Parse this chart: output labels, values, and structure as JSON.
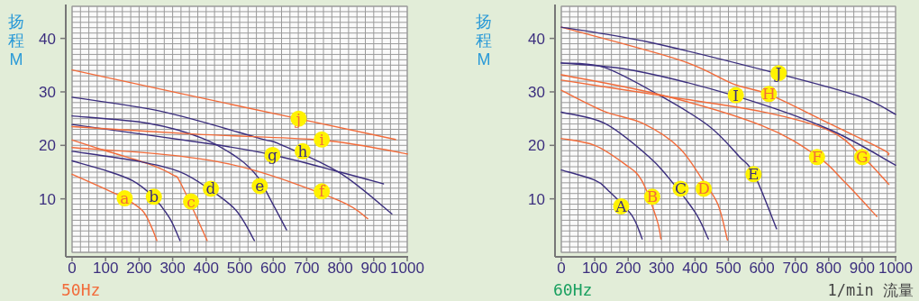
{
  "chart_data": [
    {
      "type": "line",
      "title": "50Hz",
      "ylabel": "扬程M",
      "xlim": [
        0,
        1000
      ],
      "ylim": [
        0,
        46
      ],
      "grid": true,
      "marker": "none",
      "line_style": "solid",
      "xticks": [
        0,
        100,
        200,
        300,
        400,
        500,
        600,
        700,
        800,
        900,
        1000
      ],
      "yticks": [
        10,
        20,
        30,
        40
      ],
      "series": [
        {
          "color": "#f26b3a",
          "x": [
            0,
            100,
            160,
            210,
            235,
            253
          ],
          "values": [
            14.6,
            11.8,
            10,
            7.8,
            5,
            2.2
          ]
        },
        {
          "color": "#3b2e7e",
          "x": [
            0,
            100,
            180,
            240,
            290,
            322
          ],
          "values": [
            17.1,
            15.3,
            13.4,
            10.5,
            6.5,
            2.2
          ]
        },
        {
          "color": "#f26b3a",
          "x": [
            0,
            100,
            230,
            300,
            325,
            403
          ],
          "values": [
            21,
            19,
            16.5,
            14.5,
            12.8,
            2.2
          ]
        },
        {
          "color": "#3b2e7e",
          "x": [
            0,
            200,
            320,
            410,
            490,
            544
          ],
          "values": [
            18.9,
            17,
            15.1,
            11.8,
            7.8,
            2.2
          ]
        },
        {
          "color": "#3b2e7e",
          "x": [
            0,
            230,
            390,
            500,
            555,
            590,
            640
          ],
          "values": [
            25.5,
            24.1,
            21.3,
            17.4,
            14,
            10.1,
            4.2
          ]
        },
        {
          "color": "#f26b3a",
          "x": [
            0,
            320,
            540,
            800,
            882
          ],
          "values": [
            19.6,
            18,
            15.4,
            9.6,
            6.3
          ]
        },
        {
          "color": "#3b2e7e",
          "x": [
            0,
            410,
            600,
            800,
            929
          ],
          "values": [
            23.9,
            20.3,
            18.2,
            15,
            12.8
          ]
        },
        {
          "color": "#3b2e7e",
          "x": [
            0,
            270,
            560,
            620,
            800,
            954
          ],
          "values": [
            29,
            26.3,
            21.3,
            20.2,
            14.8,
            7.2
          ]
        },
        {
          "color": "#f26b3a",
          "x": [
            0,
            370,
            720,
            860,
            1000
          ],
          "values": [
            23.5,
            22.1,
            21.1,
            20,
            18.4
          ]
        },
        {
          "color": "#f26b3a",
          "x": [
            0,
            480,
            965
          ],
          "values": [
            34.1,
            27.6,
            21.1
          ]
        }
      ],
      "annotations": [
        {
          "text": "a",
          "x": 157,
          "y": 10.1
        },
        {
          "text": "b",
          "x": 244,
          "y": 10.4
        },
        {
          "text": "c",
          "x": 355,
          "y": 9.5
        },
        {
          "text": "d",
          "x": 414,
          "y": 11.9
        },
        {
          "text": "e",
          "x": 560,
          "y": 12.4
        },
        {
          "text": "f",
          "x": 745,
          "y": 11.4
        },
        {
          "text": "g",
          "x": 598,
          "y": 18.2
        },
        {
          "text": "h",
          "x": 688,
          "y": 18.9
        },
        {
          "text": "i",
          "x": 745,
          "y": 21.1
        },
        {
          "text": "j",
          "x": 676,
          "y": 25
        }
      ]
    },
    {
      "type": "line",
      "title": "60Hz",
      "ylabel": "扬程M",
      "xlabel": "1/min 流量",
      "xlim": [
        0,
        1000
      ],
      "ylim": [
        0,
        46
      ],
      "grid": true,
      "marker": "none",
      "line_style": "solid",
      "xticks": [
        0,
        100,
        200,
        300,
        400,
        500,
        600,
        700,
        800,
        900,
        1000
      ],
      "yticks": [
        10,
        20,
        30,
        40
      ],
      "series": [
        {
          "color": "#3b2e7e",
          "x": [
            0,
            100,
            140,
            210,
            242
          ],
          "values": [
            15.4,
            13.5,
            11.6,
            7,
            2.5
          ]
        },
        {
          "color": "#f26b3a",
          "x": [
            0,
            100,
            190,
            240,
            285,
            298
          ],
          "values": [
            21.3,
            20,
            16.5,
            13.5,
            6.3,
            2.5
          ]
        },
        {
          "color": "#3b2e7e",
          "x": [
            0,
            130,
            260,
            320,
            400,
            440
          ],
          "values": [
            26.2,
            24.1,
            18,
            14,
            7.5,
            2.5
          ]
        },
        {
          "color": "#f26b3a",
          "x": [
            0,
            127,
            244,
            352,
            424,
            469,
            497
          ],
          "values": [
            30.3,
            26.4,
            24.1,
            19.6,
            13.4,
            8.9,
            2.3
          ]
        },
        {
          "color": "#3b2e7e",
          "x": [
            0,
            127,
            298,
            442,
            531,
            577,
            644
          ],
          "values": [
            35.4,
            34.6,
            29.2,
            23.6,
            18,
            14.6,
            4.4
          ]
        },
        {
          "color": "#f26b3a",
          "x": [
            0,
            300,
            600,
            765,
            850,
            944
          ],
          "values": [
            33.2,
            29.4,
            23.7,
            18,
            13,
            6.7
          ]
        },
        {
          "color": "#f26b3a",
          "x": [
            0,
            300,
            600,
            800,
            900,
            980
          ],
          "values": [
            32.2,
            29.3,
            26.3,
            22.8,
            18,
            12.7
          ]
        },
        {
          "color": "#f26b3a",
          "x": [
            0,
            352,
            514,
            622,
            801,
            962,
            978
          ],
          "values": [
            42.1,
            36,
            31.5,
            29.5,
            24.1,
            19.2,
            18.2
          ]
        },
        {
          "color": "#3b2e7e",
          "x": [
            0,
            217,
            522,
            801,
            1000
          ],
          "values": [
            35.4,
            34,
            29.2,
            23,
            16.3
          ]
        },
        {
          "color": "#3b2e7e",
          "x": [
            0,
            262,
            648,
            890,
            1000
          ],
          "values": [
            42.1,
            39.3,
            33.4,
            29.2,
            25.8
          ]
        }
      ],
      "annotations": [
        {
          "text": "A",
          "x": 179,
          "y": 8.6
        },
        {
          "text": "B",
          "x": 272,
          "y": 10.4
        },
        {
          "text": "C",
          "x": 357,
          "y": 11.9
        },
        {
          "text": "D",
          "x": 426,
          "y": 11.9
        },
        {
          "text": "E",
          "x": 575,
          "y": 14.6
        },
        {
          "text": "F",
          "x": 765,
          "y": 17.8
        },
        {
          "text": "G",
          "x": 900,
          "y": 17.8
        },
        {
          "text": "H",
          "x": 621,
          "y": 29.6
        },
        {
          "text": "I",
          "x": 522,
          "y": 29.4
        },
        {
          "text": "J",
          "x": 650,
          "y": 33.5
        }
      ]
    }
  ]
}
